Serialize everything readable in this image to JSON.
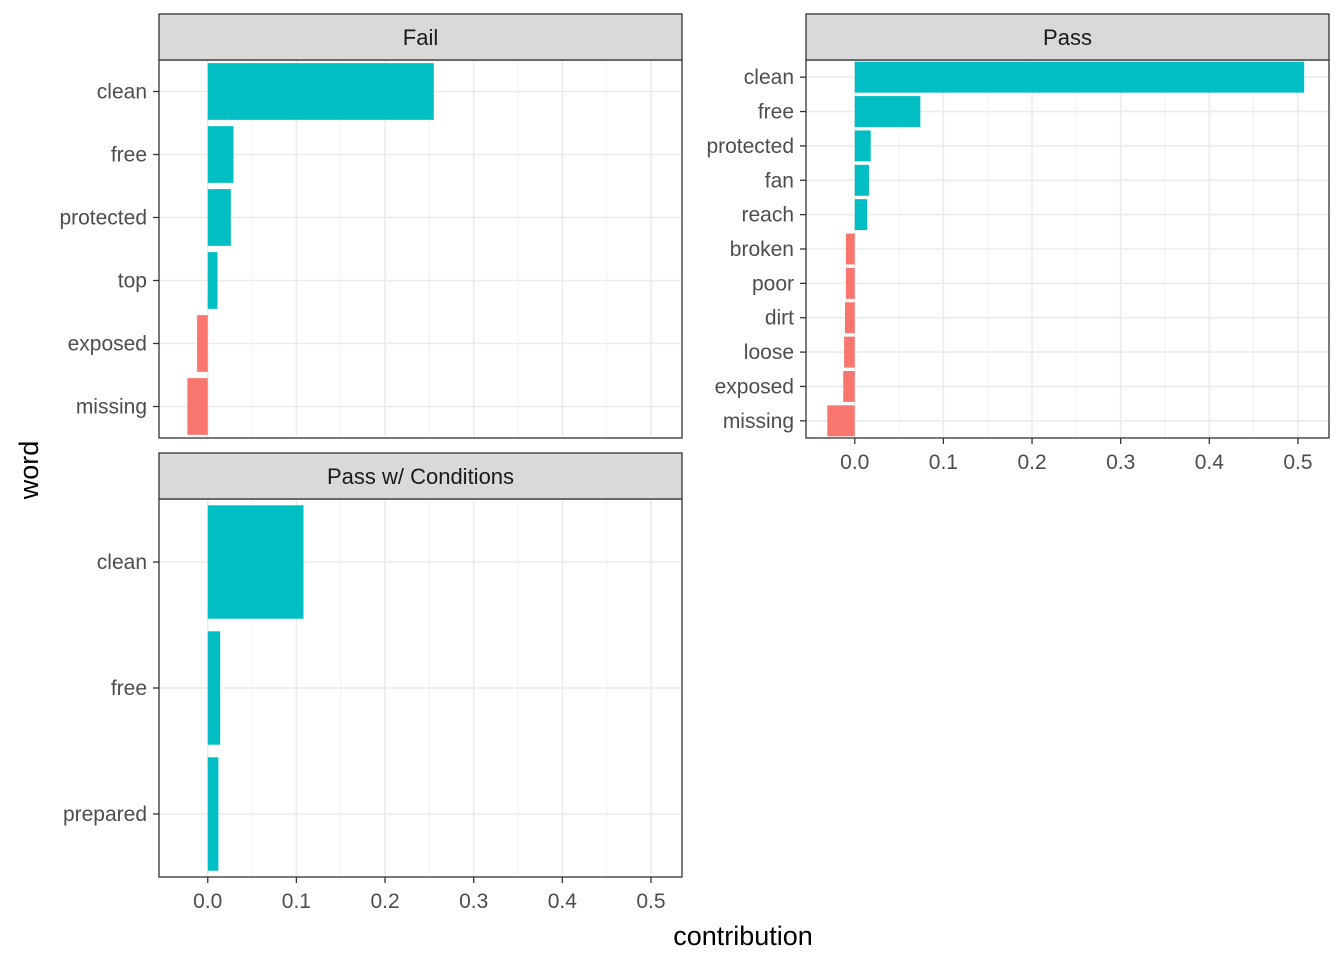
{
  "chart_data": {
    "type": "bar",
    "orientation": "horizontal",
    "xlabel": "contribution",
    "ylabel": "word",
    "xlim": [
      -0.055,
      0.535
    ],
    "x_ticks": [
      "0.0",
      "0.1",
      "0.2",
      "0.3",
      "0.4",
      "0.5"
    ],
    "x_tick_values": [
      0,
      0.1,
      0.2,
      0.3,
      0.4,
      0.5
    ],
    "grid": true,
    "colors": {
      "positive": "#00BFC4",
      "negative": "#F8766D",
      "strip": "#D9D9D9"
    },
    "panels": [
      {
        "name": "Fail",
        "words": [
          "clean",
          "free",
          "protected",
          "top",
          "exposed",
          "missing"
        ],
        "values": [
          0.255,
          0.029,
          0.026,
          0.011,
          -0.012,
          -0.023
        ]
      },
      {
        "name": "Pass",
        "words": [
          "clean",
          "free",
          "protected",
          "fan",
          "reach",
          "broken",
          "poor",
          "dirt",
          "loose",
          "exposed",
          "missing"
        ],
        "values": [
          0.507,
          0.074,
          0.018,
          0.016,
          0.014,
          -0.01,
          -0.01,
          -0.011,
          -0.012,
          -0.013,
          -0.031
        ]
      },
      {
        "name": "Pass w/ Conditions",
        "words": [
          "clean",
          "free",
          "prepared"
        ],
        "values": [
          0.108,
          0.014,
          0.012
        ]
      }
    ]
  }
}
